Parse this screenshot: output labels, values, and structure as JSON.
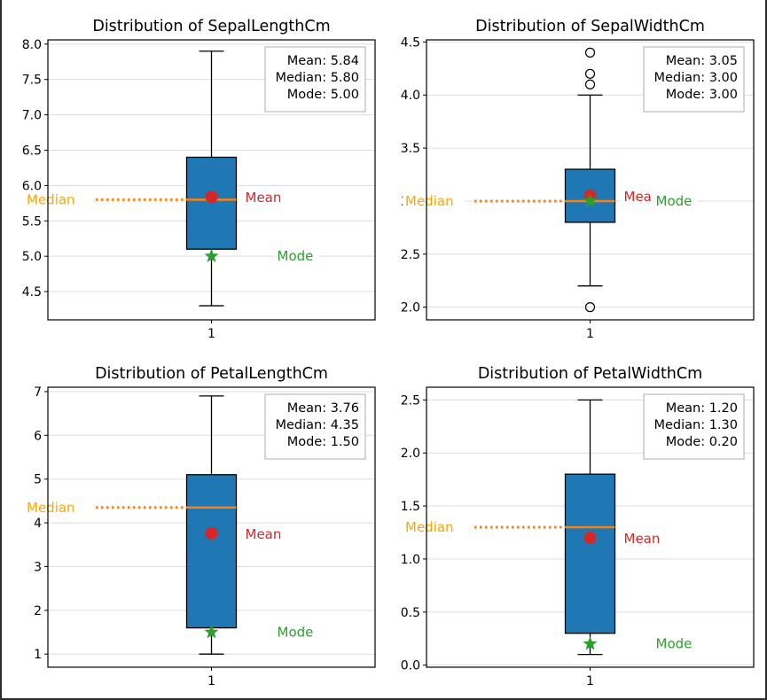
{
  "chart_data": [
    {
      "type": "box",
      "title": "Distribution of SepalLengthCm",
      "category": "1",
      "ylim": [
        4.1,
        8.06
      ],
      "yticks": [
        4.5,
        5.0,
        5.5,
        6.0,
        6.5,
        7.0,
        7.5,
        8.0
      ],
      "box": {
        "whisker_low": 4.3,
        "q1": 5.1,
        "median": 5.8,
        "q3": 6.4,
        "whisker_high": 7.9
      },
      "outliers": [],
      "stats": {
        "mean": 5.84,
        "median": 5.8,
        "mode": 5.0
      },
      "stats_text": [
        "Mean: 5.84",
        "Median: 5.80",
        "Mode: 5.00"
      ],
      "labels": {
        "mean": "Mean",
        "median": "Median",
        "mode": "Mode"
      },
      "grid": true
    },
    {
      "type": "box",
      "title": "Distribution of SepalWidthCm",
      "category": "1",
      "ylim": [
        1.88,
        4.52
      ],
      "yticks": [
        2.0,
        2.5,
        3.0,
        3.5,
        4.0,
        4.5
      ],
      "box": {
        "whisker_low": 2.2,
        "q1": 2.8,
        "median": 3.0,
        "q3": 3.3,
        "whisker_high": 4.0
      },
      "outliers": [
        4.4,
        4.2,
        4.1,
        2.0
      ],
      "stats": {
        "mean": 3.05,
        "median": 3.0,
        "mode": 3.0
      },
      "stats_text": [
        "Mean: 3.05",
        "Median: 3.00",
        "Mode: 3.00"
      ],
      "labels": {
        "mean": "Mea",
        "median": "Median",
        "mode": "Mode"
      },
      "grid": true
    },
    {
      "type": "box",
      "title": "Distribution of PetalLengthCm",
      "category": "1",
      "ylim": [
        0.7,
        7.1
      ],
      "yticks": [
        1,
        2,
        3,
        4,
        5,
        6,
        7
      ],
      "box": {
        "whisker_low": 1.0,
        "q1": 1.6,
        "median": 4.35,
        "q3": 5.1,
        "whisker_high": 6.9
      },
      "outliers": [],
      "stats": {
        "mean": 3.76,
        "median": 4.35,
        "mode": 1.5
      },
      "stats_text": [
        "Mean: 3.76",
        "Median: 4.35",
        "Mode: 1.50"
      ],
      "labels": {
        "mean": "Mean",
        "median": "Median",
        "mode": "Mode"
      },
      "grid": true
    },
    {
      "type": "box",
      "title": "Distribution of PetalWidthCm",
      "category": "1",
      "ylim": [
        -0.02,
        2.62
      ],
      "yticks": [
        0.0,
        0.5,
        1.0,
        1.5,
        2.0,
        2.5
      ],
      "box": {
        "whisker_low": 0.1,
        "q1": 0.3,
        "median": 1.3,
        "q3": 1.8,
        "whisker_high": 2.5
      },
      "outliers": [],
      "stats": {
        "mean": 1.2,
        "median": 1.3,
        "mode": 0.2
      },
      "stats_text": [
        "Mean: 1.20",
        "Median: 1.30",
        "Mode: 0.20"
      ],
      "labels": {
        "mean": "Mean",
        "median": "Median",
        "mode": "Mode"
      },
      "grid": true
    }
  ],
  "colors": {
    "box_fill": "#1f77b4",
    "median_line": "#ff7f0e",
    "median_label": "#ffa500",
    "mean": "#d62728",
    "mode": "#2ca02c",
    "grid": "#dddddd",
    "frame": "#000000"
  }
}
